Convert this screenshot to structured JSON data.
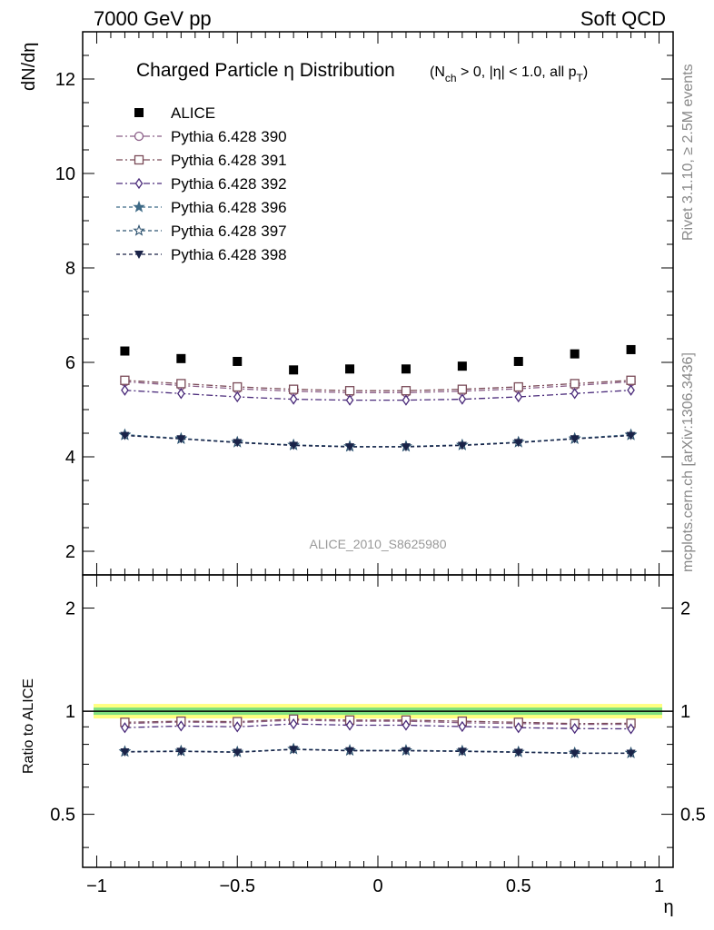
{
  "header": {
    "left": "7000 GeV pp",
    "right": "Soft QCD"
  },
  "side_labels": {
    "rivet": "Rivet 3.1.10, ≥ 2.5M events",
    "mcplots": "mcplots.cern.ch [arXiv:1306.3436]"
  },
  "chart_data": [
    {
      "type": "scatter",
      "title": "Charged Particle η Distribution",
      "title_cond": {
        "pre": "(N",
        "sub1": "ch",
        "mid": " > 0, |η| < 1.0, all p",
        "sub2": "T",
        "post": ")"
      },
      "ylabel": "dN/dη",
      "xlabel": "",
      "watermark": "ALICE_2010_S8625980",
      "xlim": [
        -1.05,
        1.05
      ],
      "ylim": [
        1.5,
        13.0
      ],
      "yticks": [
        2,
        4,
        6,
        8,
        10,
        12
      ],
      "ytick_labels": [
        "2",
        "4",
        "6",
        "8",
        "10",
        "12"
      ],
      "legend_position": "top-left",
      "x": [
        -0.9,
        -0.7,
        -0.5,
        -0.3,
        -0.1,
        0.1,
        0.3,
        0.5,
        0.7,
        0.9
      ],
      "series": [
        {
          "name": "ALICE",
          "marker": "square-filled",
          "line": "none",
          "color": "#000000",
          "values": [
            6.24,
            6.08,
            6.02,
            5.84,
            5.86,
            5.86,
            5.92,
            6.02,
            6.18,
            6.27
          ]
        },
        {
          "name": "Pythia 6.428 390",
          "marker": "circle-open",
          "line": "dashdot",
          "color": "#8b5f88",
          "values": [
            5.59,
            5.51,
            5.44,
            5.39,
            5.36,
            5.36,
            5.39,
            5.44,
            5.51,
            5.59
          ]
        },
        {
          "name": "Pythia 6.428 391",
          "marker": "square-open",
          "line": "dashdot",
          "color": "#7a4b58",
          "values": [
            5.62,
            5.55,
            5.48,
            5.43,
            5.4,
            5.4,
            5.43,
            5.48,
            5.55,
            5.62
          ]
        },
        {
          "name": "Pythia 6.428 392",
          "marker": "diamond-open",
          "line": "dashdot",
          "color": "#4a2a7a",
          "values": [
            5.41,
            5.34,
            5.27,
            5.22,
            5.2,
            5.2,
            5.22,
            5.27,
            5.34,
            5.41
          ]
        },
        {
          "name": "Pythia 6.428 396",
          "marker": "star-filled",
          "line": "dashed",
          "color": "#3e6a86",
          "values": [
            4.47,
            4.39,
            4.31,
            4.25,
            4.22,
            4.22,
            4.25,
            4.31,
            4.39,
            4.47
          ]
        },
        {
          "name": "Pythia 6.428 397",
          "marker": "star-open",
          "line": "dashed",
          "color": "#2f5370",
          "values": [
            4.46,
            4.38,
            4.31,
            4.25,
            4.22,
            4.22,
            4.25,
            4.31,
            4.38,
            4.46
          ]
        },
        {
          "name": "Pythia 6.428 398",
          "marker": "triangle-down-filled",
          "line": "dashed",
          "color": "#1a2348",
          "values": [
            4.45,
            4.38,
            4.3,
            4.24,
            4.21,
            4.21,
            4.24,
            4.3,
            4.38,
            4.45
          ]
        }
      ]
    },
    {
      "type": "scatter",
      "title": "",
      "ylabel": "Ratio to ALICE",
      "xlabel": "η",
      "xlim": [
        -1.05,
        1.05
      ],
      "ylim": [
        0.35,
        2.5
      ],
      "yscale": "log",
      "yticks": [
        0.5,
        1,
        2
      ],
      "ytick_labels": [
        "0.5",
        "1",
        "2"
      ],
      "xticks": [
        -1,
        -0.5,
        0,
        0.5,
        1
      ],
      "xtick_labels": [
        "−1",
        "−0.5",
        "0",
        "0.5",
        "1"
      ],
      "reference_line": 1,
      "x": [
        -0.9,
        -0.7,
        -0.5,
        -0.3,
        -0.1,
        0.1,
        0.3,
        0.5,
        0.7,
        0.9
      ],
      "series": [
        {
          "name": "Pythia 6.428 390",
          "values": [
            0.92,
            0.93,
            0.925,
            0.942,
            0.935,
            0.935,
            0.925,
            0.92,
            0.915,
            0.915
          ]
        },
        {
          "name": "Pythia 6.428 391",
          "values": [
            0.928,
            0.935,
            0.932,
            0.948,
            0.942,
            0.942,
            0.935,
            0.928,
            0.92,
            0.922
          ]
        },
        {
          "name": "Pythia 6.428 392",
          "values": [
            0.895,
            0.905,
            0.9,
            0.918,
            0.91,
            0.91,
            0.902,
            0.895,
            0.89,
            0.888
          ]
        },
        {
          "name": "Pythia 6.428 396",
          "values": [
            0.762,
            0.765,
            0.76,
            0.775,
            0.768,
            0.768,
            0.765,
            0.76,
            0.755,
            0.755
          ]
        },
        {
          "name": "Pythia 6.428 397",
          "values": [
            0.762,
            0.765,
            0.76,
            0.775,
            0.768,
            0.768,
            0.765,
            0.76,
            0.755,
            0.755
          ]
        },
        {
          "name": "Pythia 6.428 398",
          "values": [
            0.76,
            0.763,
            0.758,
            0.773,
            0.766,
            0.766,
            0.763,
            0.758,
            0.753,
            0.753
          ]
        }
      ]
    }
  ]
}
